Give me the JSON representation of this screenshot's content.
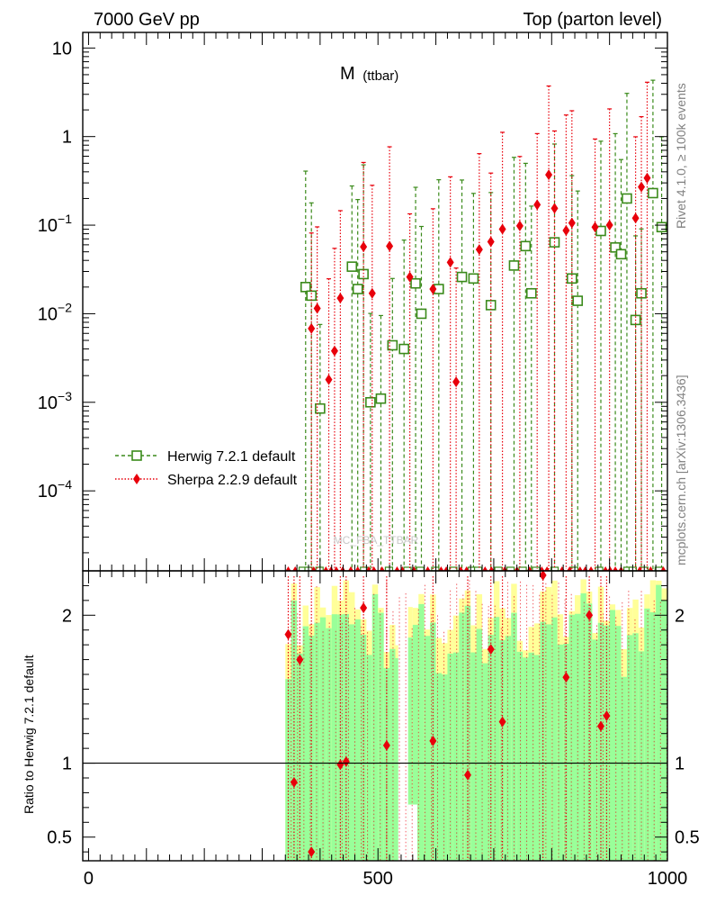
{
  "header": {
    "left": "7000 GeV pp",
    "right": "Top (parton level)"
  },
  "side": {
    "rivet": "Rivet 4.1.0, ≥ 100k events",
    "mcplots": "mcplots.cern.ch [arXiv:1306.3436]"
  },
  "chart_data": [
    {
      "type": "scatter",
      "panel": "main",
      "title": "M",
      "title_sub": "(ttbar)",
      "watermark": "MC_FBA_TTBAR",
      "yscale": "log",
      "ylim": [
        1.25e-05,
        15
      ],
      "xlim": [
        -10,
        1000
      ],
      "y_tick_labels": [
        {
          "v": 10,
          "base": "10",
          "exp": ""
        },
        {
          "v": 1,
          "base": "1",
          "exp": ""
        },
        {
          "v": 0.1,
          "base": "10",
          "exp": "−1"
        },
        {
          "v": 0.01,
          "base": "10",
          "exp": "−2"
        },
        {
          "v": 0.001,
          "base": "10",
          "exp": "−3"
        },
        {
          "v": 0.0001,
          "base": "10",
          "exp": "−4"
        }
      ],
      "legend": [
        {
          "name": "Herwig 7.2.1 default",
          "color": "#3a8a1a",
          "marker": "open-square",
          "line": "dashed"
        },
        {
          "name": "Sherpa 2.2.9 default",
          "color": "#e8000b",
          "marker": "diamond",
          "line": "dotted"
        }
      ],
      "series": [
        {
          "name": "Herwig 7.2.1 default",
          "points": [
            [
              375,
              0.02
            ],
            [
              385,
              0.016
            ],
            [
              400,
              0.00085
            ],
            [
              455,
              0.034
            ],
            [
              465,
              0.019
            ],
            [
              475,
              0.028
            ],
            [
              487,
              0.001
            ],
            [
              505,
              0.0011
            ],
            [
              525,
              0.0044
            ],
            [
              545,
              0.004
            ],
            [
              565,
              0.022
            ],
            [
              575,
              0.01
            ],
            [
              605,
              0.019
            ],
            [
              645,
              0.026
            ],
            [
              665,
              0.025
            ],
            [
              695,
              0.0125
            ],
            [
              735,
              0.035
            ],
            [
              755,
              0.058
            ],
            [
              765,
              0.017
            ],
            [
              805,
              0.064
            ],
            [
              835,
              0.025
            ],
            [
              845,
              0.014
            ],
            [
              885,
              0.086
            ],
            [
              910,
              0.056
            ],
            [
              920,
              0.047
            ],
            [
              930,
              0.2
            ],
            [
              945,
              0.0085
            ],
            [
              955,
              0.017
            ],
            [
              975,
              0.23
            ],
            [
              990,
              0.095
            ]
          ]
        },
        {
          "name": "Sherpa 2.2.9 default",
          "points": [
            [
              385,
              0.0068
            ],
            [
              395,
              0.0115
            ],
            [
              415,
              0.0018
            ],
            [
              425,
              0.0038
            ],
            [
              435,
              0.015
            ],
            [
              475,
              0.057
            ],
            [
              490,
              0.017
            ],
            [
              520,
              0.058
            ],
            [
              555,
              0.026
            ],
            [
              595,
              0.019
            ],
            [
              625,
              0.038
            ],
            [
              635,
              0.0017
            ],
            [
              675,
              0.053
            ],
            [
              695,
              0.065
            ],
            [
              715,
              0.09
            ],
            [
              745,
              0.098
            ],
            [
              775,
              0.17
            ],
            [
              795,
              0.37
            ],
            [
              805,
              0.155
            ],
            [
              825,
              0.087
            ],
            [
              835,
              0.106
            ],
            [
              875,
              0.095
            ],
            [
              900,
              0.1
            ],
            [
              945,
              0.12
            ],
            [
              955,
              0.27
            ],
            [
              965,
              0.34
            ]
          ]
        }
      ]
    },
    {
      "type": "scatter",
      "panel": "ratio",
      "ylabel": "Ratio to Herwig 7.2.1 default",
      "ylim": [
        0.34,
        2.3
      ],
      "xlim": [
        -10,
        1000
      ],
      "x_tick_labels": [
        "0",
        "500",
        "1000"
      ],
      "y_tick_labels": [
        "0.5",
        "1",
        "2"
      ],
      "reference_line": 1,
      "band_colors": {
        "inner": "#99ff99",
        "outer": "#ffff99"
      },
      "series": [
        {
          "name": "Sherpa 2.2.9 default",
          "points": [
            [
              345,
              1.87
            ],
            [
              355,
              0.87
            ],
            [
              365,
              1.7
            ],
            [
              385,
              0.4
            ],
            [
              435,
              0.99
            ],
            [
              445,
              1.01
            ],
            [
              475,
              2.05
            ],
            [
              515,
              1.12
            ],
            [
              595,
              1.15
            ],
            [
              655,
              0.92
            ],
            [
              695,
              1.77
            ],
            [
              715,
              1.28
            ],
            [
              785,
              2.27
            ],
            [
              825,
              1.58
            ],
            [
              865,
              2.0
            ],
            [
              885,
              1.25
            ],
            [
              895,
              1.32
            ]
          ]
        }
      ]
    }
  ]
}
